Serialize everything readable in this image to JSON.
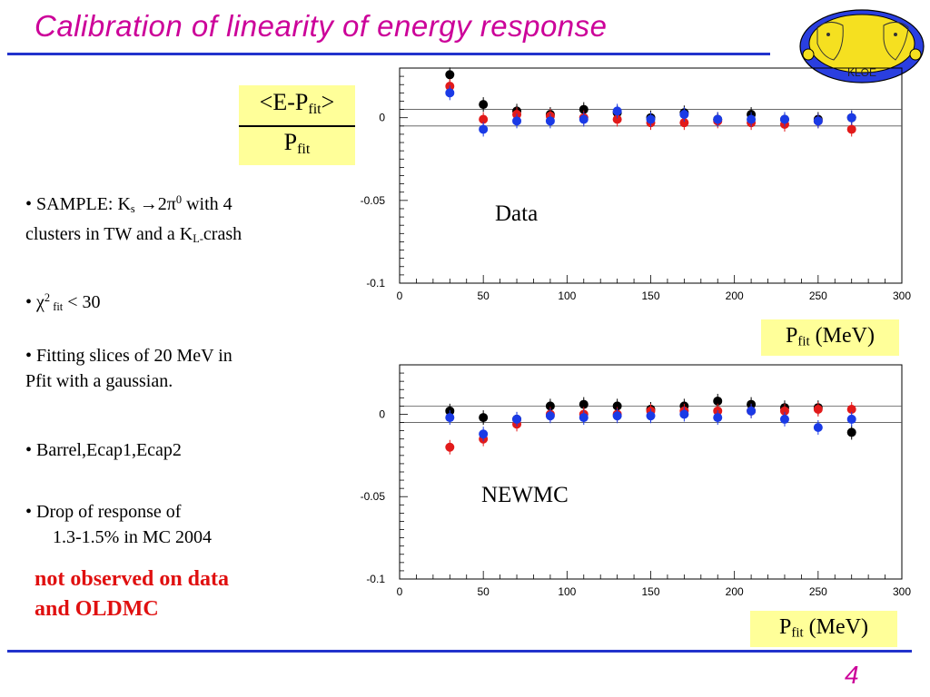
{
  "slide": {
    "title": "Calibration of linearity of energy response",
    "page_number": "4",
    "colors": {
      "title": "#cc0099",
      "rule": "#2233cc",
      "highlight_box": "#ffff99",
      "emphasis": "#e01010"
    }
  },
  "fraction": {
    "num_a": "<E-P",
    "num_sub": "fit",
    "num_b": ">",
    "den_a": "P",
    "den_sub": "fit"
  },
  "bullets": {
    "b1_a": "• SAMPLE: K",
    "b1_sub": "s",
    "b1_b": " →2π",
    "b1_sup": "0",
    "b1_c": " with 4",
    "b1_line2_a": "clusters in TW and a K",
    "b1_line2_sub": "L-",
    "b1_line2_b": "crash",
    "b2_a": "•  χ",
    "b2_sup": "2",
    "b2_sub": " fit",
    "b2_b": " < 30",
    "b3_line1": "• Fitting slices of 20 MeV in",
    "b3_line2": "Pfit with a gaussian.",
    "b4": "• Barrel,Ecap1,Ecap2",
    "b5_line1": "• Drop of response of",
    "b5_line2": "1.3-1.5% in MC 2004",
    "emph_line1": "not observed on data",
    "emph_line2": "and OLDMC"
  },
  "unit_label": {
    "a": "P",
    "sub": "fit",
    "b": " (MeV)"
  },
  "logo": {
    "text": "KLOE"
  },
  "chart_data": [
    {
      "type": "scatter",
      "annotation": "Data",
      "xlim": [
        0,
        300
      ],
      "ylim": [
        -0.1,
        0.03
      ],
      "xticks": [
        "0",
        "50",
        "100",
        "150",
        "200",
        "250",
        "300"
      ],
      "yticks": [
        "0",
        "-0.05",
        "-0.1"
      ],
      "ref_lines": [
        0.005,
        -0.005
      ],
      "series": [
        {
          "color": "#000000",
          "x": [
            30,
            50,
            70,
            90,
            110,
            130,
            150,
            170,
            190,
            210,
            230,
            250,
            270
          ],
          "y": [
            0.026,
            0.008,
            0.004,
            0.002,
            0.005,
            0.003,
            0.0,
            0.003,
            -0.001,
            0.002,
            -0.001,
            -0.001,
            0.0
          ]
        },
        {
          "color": "#e21a1a",
          "x": [
            30,
            50,
            70,
            90,
            110,
            130,
            150,
            170,
            190,
            210,
            230,
            250,
            270
          ],
          "y": [
            0.019,
            -0.001,
            0.002,
            0.001,
            0.0,
            -0.001,
            -0.003,
            -0.003,
            -0.002,
            -0.003,
            -0.004,
            -0.002,
            -0.007
          ]
        },
        {
          "color": "#1a3ae6",
          "x": [
            30,
            50,
            70,
            90,
            110,
            130,
            150,
            170,
            190,
            210,
            230,
            250,
            270
          ],
          "y": [
            0.015,
            -0.007,
            -0.002,
            -0.002,
            -0.001,
            0.004,
            -0.001,
            0.002,
            -0.001,
            -0.001,
            -0.001,
            -0.002,
            0.0
          ]
        }
      ]
    },
    {
      "type": "scatter",
      "annotation": "NEWMC",
      "xlim": [
        0,
        300
      ],
      "ylim": [
        -0.1,
        0.03
      ],
      "xticks": [
        "0",
        "50",
        "100",
        "150",
        "200",
        "250",
        "300"
      ],
      "yticks": [
        "0",
        "-0.05",
        "-0.1"
      ],
      "ref_lines": [
        0.005,
        -0.005
      ],
      "series": [
        {
          "color": "#000000",
          "x": [
            30,
            50,
            70,
            90,
            110,
            130,
            150,
            170,
            190,
            210,
            230,
            250,
            270
          ],
          "y": [
            0.002,
            -0.002,
            -0.003,
            0.005,
            0.006,
            0.005,
            0.003,
            0.005,
            0.008,
            0.006,
            0.004,
            0.004,
            -0.011
          ]
        },
        {
          "color": "#e21a1a",
          "x": [
            30,
            50,
            70,
            90,
            110,
            130,
            150,
            170,
            190,
            210,
            230,
            250,
            270
          ],
          "y": [
            -0.02,
            -0.015,
            -0.006,
            0.0,
            0.0,
            0.0,
            0.002,
            0.002,
            0.002,
            0.002,
            0.002,
            0.003,
            0.003
          ]
        },
        {
          "color": "#1a3ae6",
          "x": [
            30,
            50,
            70,
            90,
            110,
            130,
            150,
            170,
            190,
            210,
            230,
            250,
            270
          ],
          "y": [
            -0.002,
            -0.012,
            -0.003,
            -0.001,
            -0.002,
            -0.001,
            -0.001,
            0.0,
            -0.002,
            0.002,
            -0.003,
            -0.008,
            -0.003
          ]
        }
      ]
    }
  ]
}
